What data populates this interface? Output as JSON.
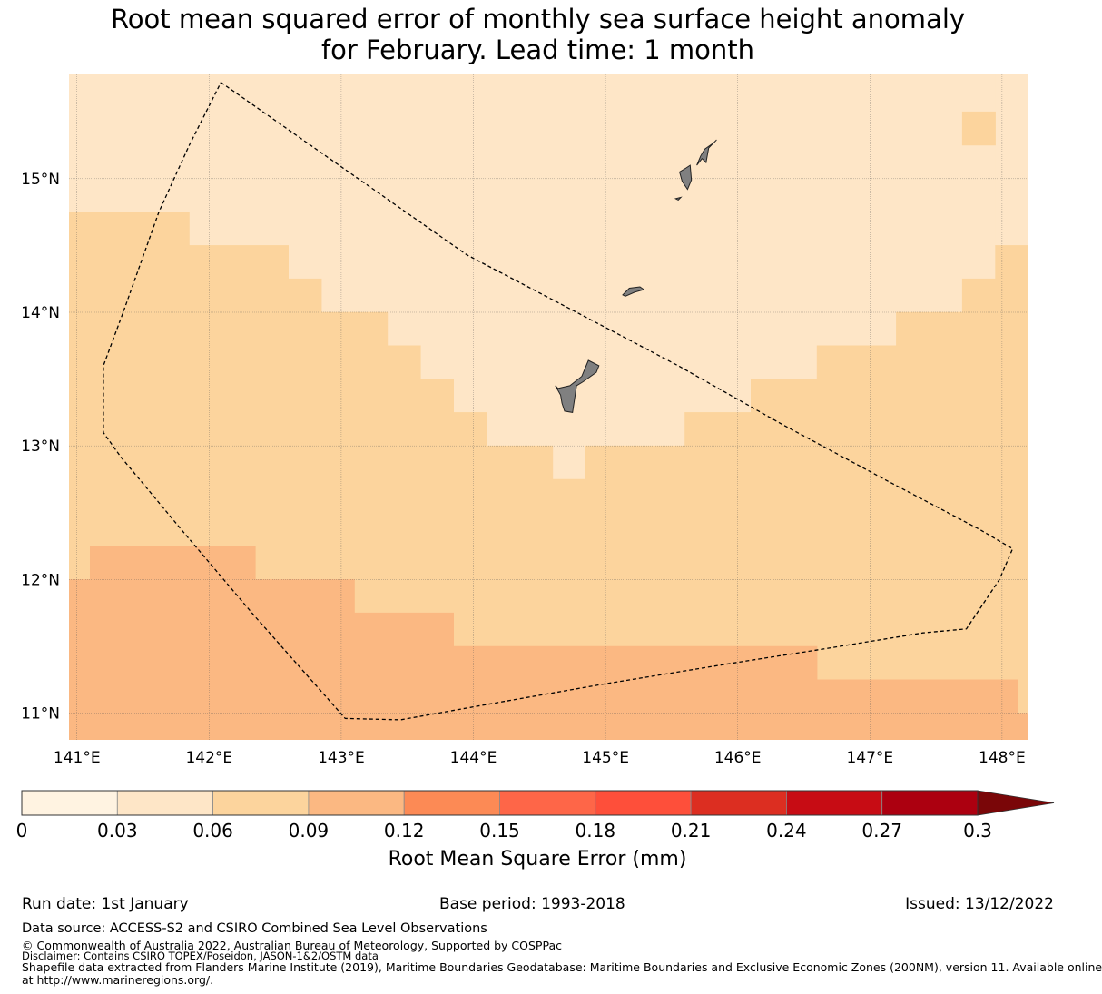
{
  "title": {
    "line1": "Root mean squared error of monthly sea surface height anomaly",
    "line2": "for February. Lead time: 1 month"
  },
  "map": {
    "lon_range": [
      140.94,
      148.2
    ],
    "lat_range": [
      10.8,
      15.78
    ],
    "lon_ticks": [
      {
        "value": 141,
        "label": "141°E"
      },
      {
        "value": 142,
        "label": "142°E"
      },
      {
        "value": 143,
        "label": "143°E"
      },
      {
        "value": 144,
        "label": "144°E"
      },
      {
        "value": 145,
        "label": "145°E"
      },
      {
        "value": 146,
        "label": "146°E"
      },
      {
        "value": 147,
        "label": "147°E"
      },
      {
        "value": 148,
        "label": "148°E"
      }
    ],
    "lat_ticks": [
      {
        "value": 11,
        "label": "11°N"
      },
      {
        "value": 12,
        "label": "12°N"
      },
      {
        "value": 13,
        "label": "13°N"
      },
      {
        "value": 14,
        "label": "14°N"
      },
      {
        "value": 15,
        "label": "15°N"
      }
    ],
    "field_colors": {
      "band_003_006": "#fee6c7",
      "band_006_009": "#fcd49d",
      "band_009_012": "#fbb882",
      "land": "#808080"
    },
    "error_regions": [
      {
        "name": "region-rmse-0.03-0.06",
        "band": "band_003_006",
        "points": [
          [
            140.94,
            15.78
          ],
          [
            148.2,
            15.78
          ],
          [
            148.2,
            14.5
          ],
          [
            147.95,
            14.5
          ],
          [
            147.95,
            15.25
          ],
          [
            147.7,
            15.25
          ],
          [
            147.7,
            15.5
          ],
          [
            147.95,
            15.5
          ],
          [
            147.95,
            15.78
          ],
          [
            148.2,
            15.78
          ],
          [
            148.2,
            14.5
          ],
          [
            147.95,
            14.5
          ],
          [
            147.95,
            14.25
          ],
          [
            147.7,
            14.25
          ],
          [
            147.7,
            14.0
          ],
          [
            147.2,
            14.0
          ],
          [
            147.2,
            13.75
          ],
          [
            146.6,
            13.75
          ],
          [
            146.6,
            13.5
          ],
          [
            146.1,
            13.5
          ],
          [
            146.1,
            13.25
          ],
          [
            145.6,
            13.25
          ],
          [
            145.6,
            13.0
          ],
          [
            144.85,
            13.0
          ],
          [
            144.85,
            12.75
          ],
          [
            144.6,
            12.75
          ],
          [
            144.6,
            13.0
          ],
          [
            144.1,
            13.0
          ],
          [
            144.1,
            13.25
          ],
          [
            143.85,
            13.25
          ],
          [
            143.85,
            13.5
          ],
          [
            143.6,
            13.5
          ],
          [
            143.6,
            13.75
          ],
          [
            143.35,
            13.75
          ],
          [
            143.35,
            14.0
          ],
          [
            142.85,
            14.0
          ],
          [
            142.85,
            14.25
          ],
          [
            142.6,
            14.25
          ],
          [
            142.6,
            14.5
          ],
          [
            141.85,
            14.5
          ],
          [
            141.85,
            14.75
          ],
          [
            140.94,
            14.75
          ]
        ]
      },
      {
        "name": "region-rmse-0.06-0.09",
        "band": "band_006_009",
        "points": [
          [
            140.94,
            14.75
          ],
          [
            141.85,
            14.75
          ],
          [
            141.85,
            14.5
          ],
          [
            142.6,
            14.5
          ],
          [
            142.6,
            14.25
          ],
          [
            142.85,
            14.25
          ],
          [
            142.85,
            14.0
          ],
          [
            143.35,
            14.0
          ],
          [
            143.35,
            13.75
          ],
          [
            143.6,
            13.75
          ],
          [
            143.6,
            13.5
          ],
          [
            143.85,
            13.5
          ],
          [
            143.85,
            13.25
          ],
          [
            144.1,
            13.25
          ],
          [
            144.1,
            13.0
          ],
          [
            144.6,
            13.0
          ],
          [
            144.6,
            12.75
          ],
          [
            144.85,
            12.75
          ],
          [
            144.85,
            13.0
          ],
          [
            145.6,
            13.0
          ],
          [
            145.6,
            13.25
          ],
          [
            146.1,
            13.25
          ],
          [
            146.1,
            13.5
          ],
          [
            146.6,
            13.5
          ],
          [
            146.6,
            13.75
          ],
          [
            147.2,
            13.75
          ],
          [
            147.2,
            14.0
          ],
          [
            147.7,
            14.0
          ],
          [
            147.7,
            14.25
          ],
          [
            147.95,
            14.25
          ],
          [
            147.95,
            14.5
          ],
          [
            148.2,
            14.5
          ],
          [
            148.2,
            11.0
          ],
          [
            148.12,
            11.0
          ],
          [
            148.12,
            11.25
          ],
          [
            146.6,
            11.25
          ],
          [
            146.6,
            11.5
          ],
          [
            143.85,
            11.5
          ],
          [
            143.85,
            11.75
          ],
          [
            143.1,
            11.75
          ],
          [
            143.1,
            12.0
          ],
          [
            142.35,
            12.0
          ],
          [
            142.35,
            12.25
          ],
          [
            141.1,
            12.25
          ],
          [
            141.1,
            12.0
          ],
          [
            140.94,
            12.0
          ]
        ]
      },
      {
        "name": "region-rmse-0.09-0.12",
        "band": "band_009_012",
        "points": [
          [
            140.94,
            12.0
          ],
          [
            141.1,
            12.0
          ],
          [
            141.1,
            12.25
          ],
          [
            142.35,
            12.25
          ],
          [
            142.35,
            12.0
          ],
          [
            143.1,
            12.0
          ],
          [
            143.1,
            11.75
          ],
          [
            143.85,
            11.75
          ],
          [
            143.85,
            11.5
          ],
          [
            146.6,
            11.5
          ],
          [
            146.6,
            11.25
          ],
          [
            148.12,
            11.25
          ],
          [
            148.12,
            11.0
          ],
          [
            148.2,
            11.0
          ],
          [
            148.2,
            10.8
          ],
          [
            140.94,
            10.8
          ]
        ]
      },
      {
        "name": "region-rmse-0.06-0.09-patch-15n",
        "band": "band_006_009",
        "points": [
          [
            147.7,
            15.25
          ],
          [
            147.95,
            15.25
          ],
          [
            147.95,
            15.5
          ],
          [
            147.7,
            15.5
          ]
        ]
      },
      {
        "name": "region-rmse-0.03-0.06-strip-east",
        "band": "band_003_006",
        "points": [
          [
            147.95,
            15.78
          ],
          [
            148.2,
            15.78
          ],
          [
            148.2,
            15.78
          ],
          [
            147.95,
            15.78
          ]
        ]
      }
    ],
    "islands": [
      {
        "name": "guam-island",
        "points": [
          [
            144.64,
            13.43
          ],
          [
            144.73,
            13.45
          ],
          [
            144.82,
            13.52
          ],
          [
            144.87,
            13.64
          ],
          [
            144.95,
            13.6
          ],
          [
            144.93,
            13.55
          ],
          [
            144.83,
            13.48
          ],
          [
            144.78,
            13.45
          ],
          [
            144.77,
            13.38
          ],
          [
            144.75,
            13.25
          ],
          [
            144.69,
            13.26
          ],
          [
            144.67,
            13.32
          ],
          [
            144.66,
            13.38
          ],
          [
            144.62,
            13.45
          ]
        ]
      },
      {
        "name": "rota-island",
        "points": [
          [
            145.13,
            14.13
          ],
          [
            145.18,
            14.18
          ],
          [
            145.26,
            14.19
          ],
          [
            145.29,
            14.17
          ],
          [
            145.22,
            14.15
          ],
          [
            145.15,
            14.12
          ]
        ]
      },
      {
        "name": "tinian-island",
        "points": [
          [
            145.56,
            15.05
          ],
          [
            145.61,
            15.08
          ],
          [
            145.64,
            15.1
          ],
          [
            145.65,
            14.99
          ],
          [
            145.62,
            14.92
          ],
          [
            145.58,
            14.98
          ]
        ]
      },
      {
        "name": "saipan-island",
        "points": [
          [
            145.69,
            15.1
          ],
          [
            145.72,
            15.17
          ],
          [
            145.75,
            15.22
          ],
          [
            145.82,
            15.27
          ],
          [
            145.84,
            15.29
          ],
          [
            145.78,
            15.23
          ],
          [
            145.76,
            15.12
          ],
          [
            145.73,
            15.15
          ]
        ]
      },
      {
        "name": "aguijan-island",
        "points": [
          [
            145.53,
            14.85
          ],
          [
            145.57,
            14.86
          ],
          [
            145.55,
            14.84
          ]
        ]
      }
    ],
    "boundary_eez": [
      [
        142.09,
        15.72
      ],
      [
        143.95,
        14.43
      ],
      [
        145.03,
        13.87
      ],
      [
        145.55,
        13.6
      ],
      [
        146.32,
        13.17
      ],
      [
        147.11,
        12.75
      ],
      [
        147.82,
        12.38
      ],
      [
        148.08,
        12.23
      ],
      [
        147.98,
        12.0
      ],
      [
        147.73,
        11.63
      ],
      [
        147.4,
        11.6
      ],
      [
        146.65,
        11.48
      ],
      [
        146.0,
        11.38
      ],
      [
        145.0,
        11.22
      ],
      [
        144.13,
        11.07
      ],
      [
        143.45,
        10.95
      ],
      [
        143.03,
        10.96
      ],
      [
        142.35,
        11.72
      ],
      [
        141.81,
        12.35
      ],
      [
        141.33,
        12.92
      ],
      [
        141.2,
        13.1
      ],
      [
        141.2,
        13.6
      ],
      [
        141.35,
        14.0
      ],
      [
        141.62,
        14.75
      ],
      [
        141.85,
        15.25
      ],
      [
        142.09,
        15.72
      ]
    ]
  },
  "colorbar": {
    "label": "Root Mean Square Error (mm)",
    "ticks": [
      "0",
      "0.03",
      "0.06",
      "0.09",
      "0.12",
      "0.15",
      "0.18",
      "0.21",
      "0.24",
      "0.27",
      "0.3"
    ],
    "colors": [
      "#fff3e1",
      "#fee6c7",
      "#fcd49d",
      "#fbb882",
      "#fc8a55",
      "#fe6648",
      "#fe4f3a",
      "#dc2e21",
      "#c70c14",
      "#ac0010"
    ],
    "extend_color": "#7a0608"
  },
  "footer": {
    "run_date": "Run date: 1st January",
    "base_period": "Base period: 1993-2018",
    "issued": "Issued: 13/12/2022",
    "data_source": "Data source: ACCESS-S2 and CSIRO Combined Sea Level Observations",
    "copyright": "© Commonwealth of Australia 2022, Australian Bureau of Meteorology, Supported by COSPPac",
    "disclaimer": "Disclaimer: Contains CSIRO TOPEX/Poseidon, JASON-1&2/OSTM data",
    "shapefile_line1": "Shapefile data extracted from Flanders Marine Institute (2019), Maritime Boundaries Geodatabase: Maritime Boundaries and Exclusive Economic Zones (200NM), version 11. Available online",
    "shapefile_line2": "at http://www.marineregions.org/."
  }
}
